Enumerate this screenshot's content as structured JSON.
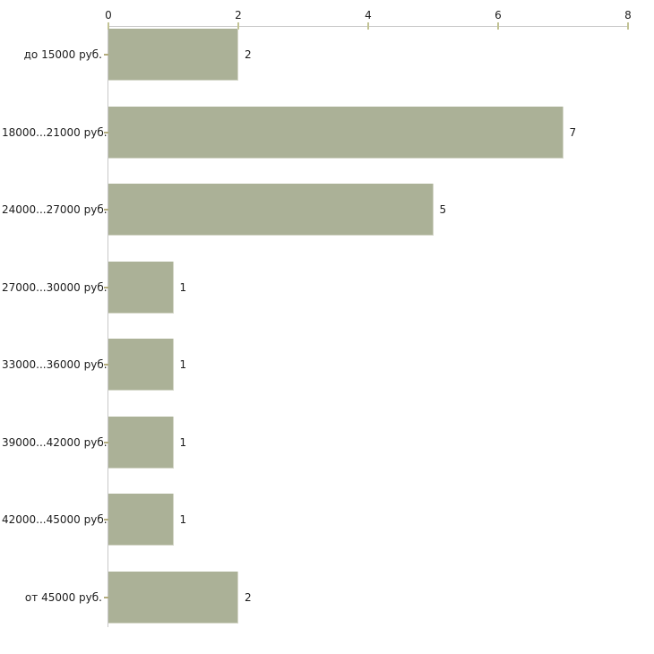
{
  "chart_data": {
    "type": "bar",
    "orientation": "horizontal",
    "title": "",
    "xlabel": "",
    "ylabel": "",
    "categories": [
      "до 15000 руб.",
      "18000...21000 руб.",
      "24000...27000 руб.",
      "27000...30000 руб.",
      "33000...36000 руб.",
      "39000...42000 руб.",
      "42000...45000 руб.",
      "от 45000 руб."
    ],
    "values": [
      2,
      7,
      5,
      1,
      1,
      1,
      1,
      2
    ],
    "value_labels": [
      "2",
      "7",
      "5",
      "1",
      "1",
      "1",
      "1",
      "2"
    ],
    "xlim": [
      0,
      8
    ],
    "x_ticks": [
      0,
      2,
      4,
      6,
      8
    ],
    "x_tick_labels": [
      "0",
      "2",
      "4",
      "6",
      "8"
    ],
    "x_axis_position": "top",
    "grid": false,
    "legend": false,
    "colors": {
      "bar_fill": "#abb197",
      "bar_edge": "#d4d6c8",
      "axis_line": "#c9c9c9",
      "x_tick_mark": "#c2c394",
      "category_tick_mark": "#b3ac7e",
      "text": "#1c1c1c",
      "background": "#ffffff"
    }
  }
}
